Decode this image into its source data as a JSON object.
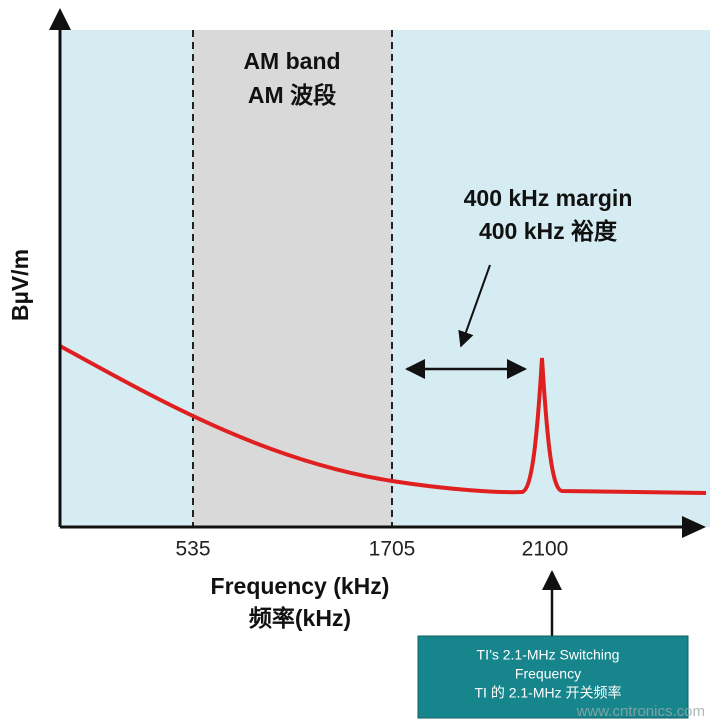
{
  "title_lines": [
    "AM band",
    "AM 波段"
  ],
  "margin_label": [
    "400 kHz margin",
    "400 kHz 裕度"
  ],
  "y_axis_label": "BµV/m",
  "x_ticks": [
    "535",
    "1705",
    "2100"
  ],
  "x_axis_label": [
    "Frequency (kHz)",
    "频率(kHz)"
  ],
  "callout": [
    "TI’s 2.1-MHz Switching",
    "Frequency",
    "TI 的 2.1-MHz 开关频率"
  ],
  "watermark": "www.cntronics.com"
}
